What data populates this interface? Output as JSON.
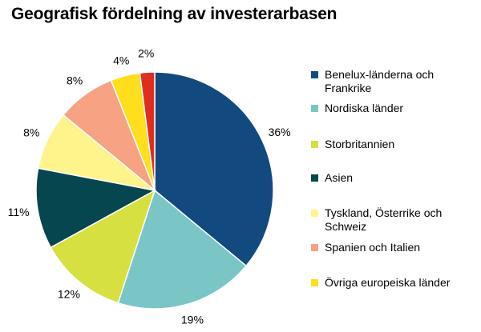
{
  "chart_data": {
    "type": "pie",
    "title": "Geografisk fördelning av investerarbasen",
    "categories": [
      "Benelux-länderna och Frankrike",
      "Nordiska länder",
      "Storbritannien",
      "Asien",
      "Tyskland, Österrike och Schweiz",
      "Spanien och Italien",
      "Övriga europeiska länder",
      ""
    ],
    "values": [
      36,
      19,
      12,
      11,
      8,
      8,
      4,
      2
    ],
    "data_labels": [
      "36%",
      "19%",
      "12%",
      "11%",
      "8%",
      "8%",
      "4%",
      "2%"
    ],
    "colors": [
      "#124A80",
      "#7AC6C7",
      "#D6E040",
      "#06474F",
      "#FFF48C",
      "#F6A283",
      "#FFDE1E",
      "#E12D20"
    ],
    "legend_placement": "right"
  }
}
